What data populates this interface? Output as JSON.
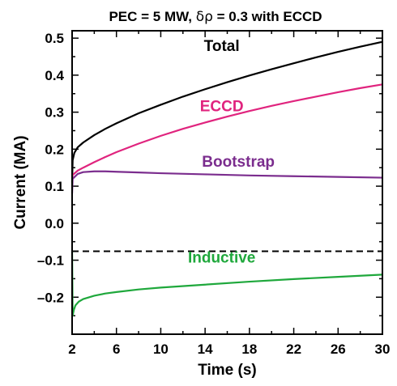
{
  "chart_data": {
    "type": "line",
    "title_parts": [
      "PEC = 5 MW, ",
      "δρ",
      " = 0.3 with ECCD"
    ],
    "xlabel": "Time (s)",
    "ylabel": "Current (MA)",
    "xlim": [
      2,
      30
    ],
    "ylim": [
      -0.3,
      0.52
    ],
    "xticks": [
      2,
      6,
      10,
      14,
      18,
      22,
      26,
      30
    ],
    "xtick_labels": [
      "2",
      "6",
      "10",
      "14",
      "18",
      "22",
      "26",
      "30"
    ],
    "yticks": [
      0.5,
      0.4,
      0.3,
      0.2,
      0.1,
      0.0,
      -0.1,
      -0.2
    ],
    "ytick_labels": [
      "0.5",
      "0.4",
      "0.3",
      "0.2",
      "0.1",
      "0.0",
      "–0.1",
      "–0.2"
    ],
    "reference_lines": [
      {
        "y": -0.076,
        "style": "dashed",
        "color": "#000000"
      }
    ],
    "series": [
      {
        "name": "Total",
        "color": "#000000",
        "x": [
          2.0,
          2.05,
          2.2,
          2.5,
          3,
          4,
          5,
          6,
          8,
          10,
          12,
          14,
          16,
          18,
          20,
          22,
          24,
          26,
          28,
          30
        ],
        "y": [
          0.11,
          0.17,
          0.19,
          0.205,
          0.218,
          0.238,
          0.255,
          0.27,
          0.297,
          0.32,
          0.342,
          0.362,
          0.381,
          0.399,
          0.416,
          0.432,
          0.448,
          0.463,
          0.477,
          0.49
        ]
      },
      {
        "name": "ECCD",
        "color": "#e0247e",
        "x": [
          2.0,
          2.05,
          2.5,
          3,
          4,
          5,
          6,
          8,
          10,
          12,
          14,
          16,
          18,
          20,
          22,
          24,
          26,
          28,
          30
        ],
        "y": [
          0.1,
          0.13,
          0.142,
          0.15,
          0.165,
          0.179,
          0.192,
          0.215,
          0.236,
          0.255,
          0.272,
          0.288,
          0.303,
          0.317,
          0.33,
          0.342,
          0.354,
          0.365,
          0.375
        ]
      },
      {
        "name": "Bootstrap",
        "color": "#7b2d8e",
        "x": [
          2.0,
          2.05,
          2.5,
          3,
          4,
          5,
          6,
          8,
          10,
          14,
          18,
          22,
          26,
          30
        ],
        "y": [
          0.08,
          0.12,
          0.133,
          0.138,
          0.14,
          0.14,
          0.139,
          0.137,
          0.135,
          0.132,
          0.129,
          0.127,
          0.125,
          0.123
        ]
      },
      {
        "name": "Inductive",
        "color": "#1fa83c",
        "x": [
          2.0,
          2.05,
          2.15,
          2.3,
          2.6,
          3,
          4,
          5,
          6,
          8,
          10,
          14,
          18,
          22,
          26,
          30
        ],
        "y": [
          -0.076,
          -0.25,
          -0.235,
          -0.222,
          -0.212,
          -0.205,
          -0.196,
          -0.19,
          -0.186,
          -0.179,
          -0.174,
          -0.166,
          -0.158,
          -0.151,
          -0.145,
          -0.139
        ]
      }
    ],
    "series_label_anchor": {
      "Total": {
        "x": 15.5,
        "y": 0.465
      },
      "ECCD": {
        "x": 15.5,
        "y": 0.302
      },
      "Bootstrap": {
        "x": 17,
        "y": 0.153
      },
      "Inductive": {
        "x": 15.5,
        "y": -0.106
      }
    },
    "grid": false,
    "legend": "none"
  }
}
